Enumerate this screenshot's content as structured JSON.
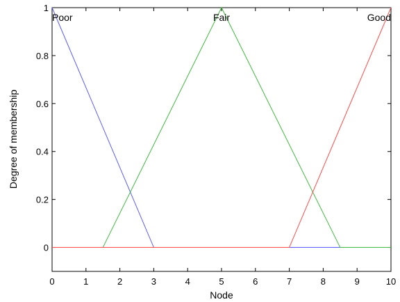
{
  "chart_data": {
    "type": "line",
    "title": "",
    "xlabel": "Node",
    "ylabel": "Degree of membership",
    "xlim": [
      0,
      10
    ],
    "ylim": [
      -0.1,
      1
    ],
    "xticks": [
      0,
      1,
      2,
      3,
      4,
      5,
      6,
      7,
      8,
      9,
      10
    ],
    "yticks": [
      0,
      0.2,
      0.4,
      0.6,
      0.8,
      1
    ],
    "grid": false,
    "series": [
      {
        "name": "Poor",
        "color": "#5a5aff",
        "x": [
          0,
          3,
          10
        ],
        "y": [
          1,
          0,
          0
        ]
      },
      {
        "name": "Fair",
        "color": "#3fb83f",
        "x": [
          0,
          1.5,
          5,
          8.5,
          10
        ],
        "y": [
          0,
          0,
          1,
          0,
          0
        ]
      },
      {
        "name": "Good",
        "color": "#ff4a4a",
        "x": [
          0,
          7,
          10
        ],
        "y": [
          0,
          0,
          1
        ]
      }
    ],
    "annotations": [
      {
        "text": "Poor",
        "x": 0,
        "anchor": "start"
      },
      {
        "text": "Fair",
        "x": 5,
        "anchor": "middle"
      },
      {
        "text": "Good",
        "x": 10,
        "anchor": "end"
      }
    ]
  }
}
